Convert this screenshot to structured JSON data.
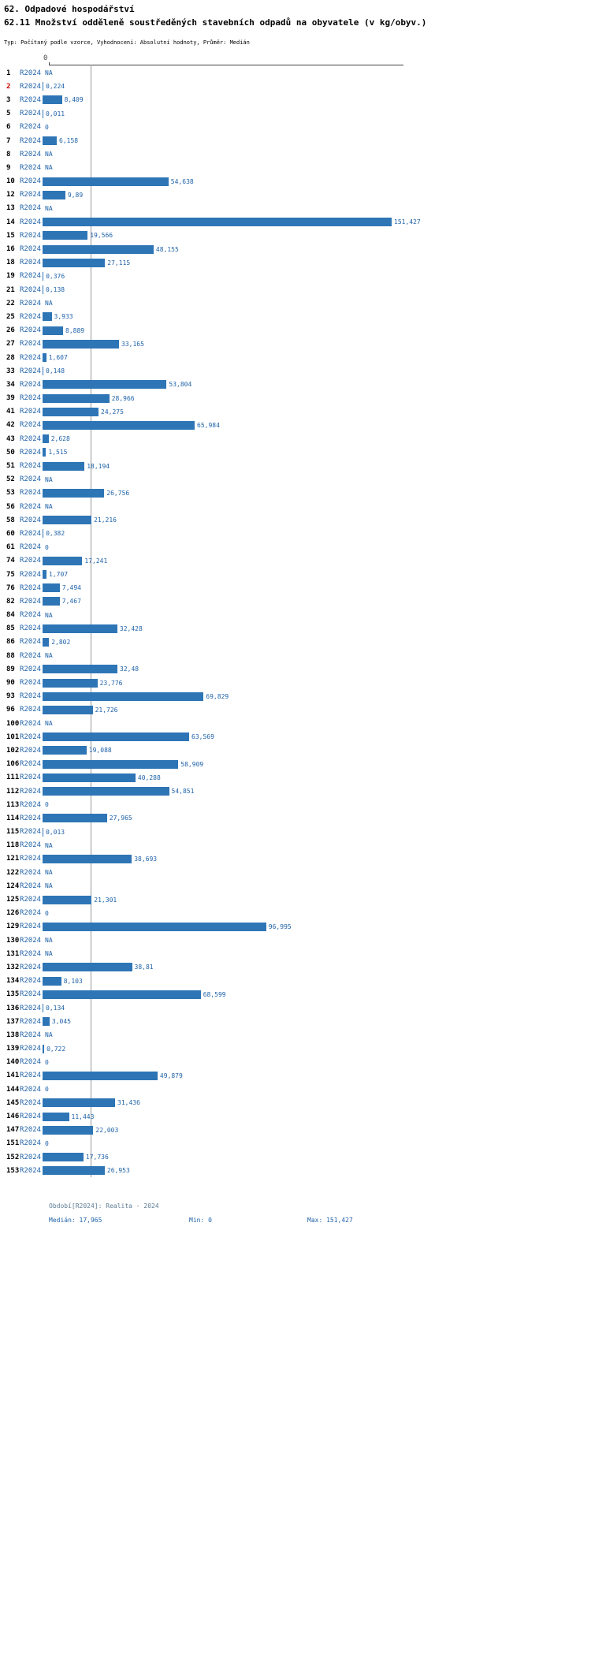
{
  "colors": {
    "bar": "#2e75b6",
    "text": "#1f62a8",
    "rownum": "#000000",
    "highlight": "#cc0000",
    "median": "#999999",
    "axis": "#444444",
    "period": "#5f7d95",
    "background": "#ffffff"
  },
  "chart_data": {
    "type": "bar",
    "orientation": "horizontal",
    "title": "62. Odpadové hospodářství",
    "subtitle": "62.11 Množství odděleně soustředěných stavebních odpadů na obyvatele (v kg/obyv.)",
    "meta": "Typ: Počítaný podle vzorce, Vyhodnocení: Absolutní hodnoty, Průměr: Medián",
    "series_label": "R2024",
    "axis_zero_label": "0",
    "xlim": [
      0,
      151.427
    ],
    "median": 17.965,
    "min": 0,
    "max": 151.427,
    "rows": [
      {
        "id": "1",
        "value": null,
        "display": "NA"
      },
      {
        "id": "2",
        "value": 0.224,
        "display": "0,224",
        "highlight": true
      },
      {
        "id": "3",
        "value": 8.409,
        "display": "8,409"
      },
      {
        "id": "5",
        "value": 0.011,
        "display": "0,011"
      },
      {
        "id": "6",
        "value": 0,
        "display": "0"
      },
      {
        "id": "7",
        "value": 6.158,
        "display": "6,158"
      },
      {
        "id": "8",
        "value": null,
        "display": "NA"
      },
      {
        "id": "9",
        "value": null,
        "display": "NA"
      },
      {
        "id": "10",
        "value": 54.638,
        "display": "54,638"
      },
      {
        "id": "12",
        "value": 9.89,
        "display": "9,89"
      },
      {
        "id": "13",
        "value": null,
        "display": "NA"
      },
      {
        "id": "14",
        "value": 151.427,
        "display": "151,427"
      },
      {
        "id": "15",
        "value": 19.566,
        "display": "19,566"
      },
      {
        "id": "16",
        "value": 48.155,
        "display": "48,155"
      },
      {
        "id": "18",
        "value": 27.115,
        "display": "27,115"
      },
      {
        "id": "19",
        "value": 0.376,
        "display": "0,376"
      },
      {
        "id": "21",
        "value": 0.138,
        "display": "0,138"
      },
      {
        "id": "22",
        "value": null,
        "display": "NA"
      },
      {
        "id": "25",
        "value": 3.933,
        "display": "3,933"
      },
      {
        "id": "26",
        "value": 8.889,
        "display": "8,889"
      },
      {
        "id": "27",
        "value": 33.165,
        "display": "33,165"
      },
      {
        "id": "28",
        "value": 1.607,
        "display": "1,607"
      },
      {
        "id": "33",
        "value": 0.148,
        "display": "0,148"
      },
      {
        "id": "34",
        "value": 53.804,
        "display": "53,804"
      },
      {
        "id": "39",
        "value": 28.966,
        "display": "28,966"
      },
      {
        "id": "41",
        "value": 24.275,
        "display": "24,275"
      },
      {
        "id": "42",
        "value": 65.984,
        "display": "65,984"
      },
      {
        "id": "43",
        "value": 2.628,
        "display": "2,628"
      },
      {
        "id": "50",
        "value": 1.515,
        "display": "1,515"
      },
      {
        "id": "51",
        "value": 18.194,
        "display": "18,194"
      },
      {
        "id": "52",
        "value": null,
        "display": "NA"
      },
      {
        "id": "53",
        "value": 26.756,
        "display": "26,756"
      },
      {
        "id": "56",
        "value": null,
        "display": "NA"
      },
      {
        "id": "58",
        "value": 21.216,
        "display": "21,216"
      },
      {
        "id": "60",
        "value": 0.382,
        "display": "0,382"
      },
      {
        "id": "61",
        "value": 0,
        "display": "0"
      },
      {
        "id": "74",
        "value": 17.241,
        "display": "17,241"
      },
      {
        "id": "75",
        "value": 1.707,
        "display": "1,707"
      },
      {
        "id": "76",
        "value": 7.494,
        "display": "7,494"
      },
      {
        "id": "82",
        "value": 7.467,
        "display": "7,467"
      },
      {
        "id": "84",
        "value": null,
        "display": "NA"
      },
      {
        "id": "85",
        "value": 32.428,
        "display": "32,428"
      },
      {
        "id": "86",
        "value": 2.802,
        "display": "2,802"
      },
      {
        "id": "88",
        "value": null,
        "display": "NA"
      },
      {
        "id": "89",
        "value": 32.48,
        "display": "32,48"
      },
      {
        "id": "90",
        "value": 23.776,
        "display": "23,776"
      },
      {
        "id": "93",
        "value": 69.829,
        "display": "69,829"
      },
      {
        "id": "96",
        "value": 21.726,
        "display": "21,726"
      },
      {
        "id": "100",
        "value": null,
        "display": "NA"
      },
      {
        "id": "101",
        "value": 63.569,
        "display": "63,569"
      },
      {
        "id": "102",
        "value": 19.088,
        "display": "19,088"
      },
      {
        "id": "106",
        "value": 58.909,
        "display": "58,909"
      },
      {
        "id": "111",
        "value": 40.288,
        "display": "40,288"
      },
      {
        "id": "112",
        "value": 54.851,
        "display": "54,851"
      },
      {
        "id": "113",
        "value": 0,
        "display": "0"
      },
      {
        "id": "114",
        "value": 27.965,
        "display": "27,965"
      },
      {
        "id": "115",
        "value": 0.013,
        "display": "0,013"
      },
      {
        "id": "118",
        "value": null,
        "display": "NA"
      },
      {
        "id": "121",
        "value": 38.693,
        "display": "38,693"
      },
      {
        "id": "122",
        "value": null,
        "display": "NA"
      },
      {
        "id": "124",
        "value": null,
        "display": "NA"
      },
      {
        "id": "125",
        "value": 21.301,
        "display": "21,301"
      },
      {
        "id": "126",
        "value": 0,
        "display": "0"
      },
      {
        "id": "129",
        "value": 96.995,
        "display": "96,995"
      },
      {
        "id": "130",
        "value": null,
        "display": "NA"
      },
      {
        "id": "131",
        "value": null,
        "display": "NA"
      },
      {
        "id": "132",
        "value": 38.81,
        "display": "38,81"
      },
      {
        "id": "134",
        "value": 8.103,
        "display": "8,103"
      },
      {
        "id": "135",
        "value": 68.599,
        "display": "68,599"
      },
      {
        "id": "136",
        "value": 0.134,
        "display": "0,134"
      },
      {
        "id": "137",
        "value": 3.045,
        "display": "3,045"
      },
      {
        "id": "138",
        "value": null,
        "display": "NA"
      },
      {
        "id": "139",
        "value": 0.722,
        "display": "0,722"
      },
      {
        "id": "140",
        "value": 0,
        "display": "0"
      },
      {
        "id": "141",
        "value": 49.879,
        "display": "49,879"
      },
      {
        "id": "144",
        "value": 0,
        "display": "0"
      },
      {
        "id": "145",
        "value": 31.436,
        "display": "31,436"
      },
      {
        "id": "146",
        "value": 11.443,
        "display": "11,443"
      },
      {
        "id": "147",
        "value": 22.003,
        "display": "22,003"
      },
      {
        "id": "151",
        "value": 0,
        "display": "0"
      },
      {
        "id": "152",
        "value": 17.736,
        "display": "17,736"
      },
      {
        "id": "153",
        "value": 26.953,
        "display": "26,953"
      }
    ],
    "footer": {
      "period": "Období[R2024]: Realita - 2024",
      "median_label": "Medián: 17,965",
      "min_label": "Min: 0",
      "max_label": "Max: 151,427"
    }
  }
}
